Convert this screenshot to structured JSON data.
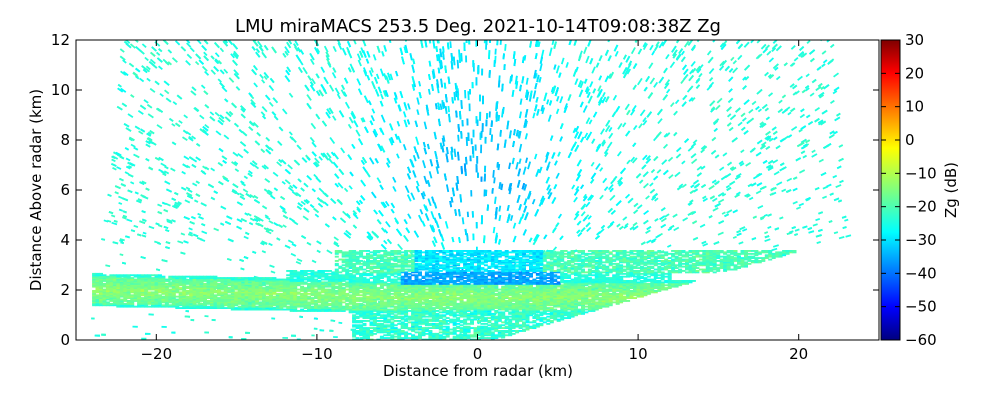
{
  "chart_data": {
    "type": "heatmap",
    "title": "LMU miraMACS 253.5 Deg. 2021-10-14T09:08:38Z  Zg",
    "xlabel": "Distance from radar (km)",
    "ylabel": "Distance Above radar  (km)",
    "xlim": [
      -25,
      25
    ],
    "ylim": [
      0,
      12
    ],
    "xticks": [
      -20,
      -10,
      0,
      10,
      20
    ],
    "xtick_labels": [
      "−20",
      "−10",
      "0",
      "10",
      "20"
    ],
    "yticks": [
      0,
      2,
      4,
      6,
      8,
      10,
      12
    ],
    "ytick_labels": [
      "0",
      "2",
      "4",
      "6",
      "8",
      "10",
      "12"
    ],
    "grid": false,
    "colorbar": {
      "label": "Zg (dB)",
      "range": [
        -60,
        30
      ],
      "ticks": [
        30,
        20,
        10,
        0,
        -10,
        -20,
        -30,
        -40,
        -50,
        -60
      ],
      "tick_labels": [
        "30",
        "20",
        "10",
        "0",
        "−10",
        "−20",
        "−30",
        "−40",
        "−50",
        "−60"
      ],
      "colormap": "jet"
    },
    "field": {
      "background_zg": -23,
      "upper_center_zg": -33,
      "bright_band_zg": -14,
      "bright_band_height_km": 1.7,
      "upper_layer_height_km": 3.1,
      "scan_left_edge_top_km": -22,
      "scan_right_edge_top_km": 22,
      "scan_left_edge_bottom_km": -24,
      "scan_right_edge_bottom_km": 23.5
    }
  }
}
